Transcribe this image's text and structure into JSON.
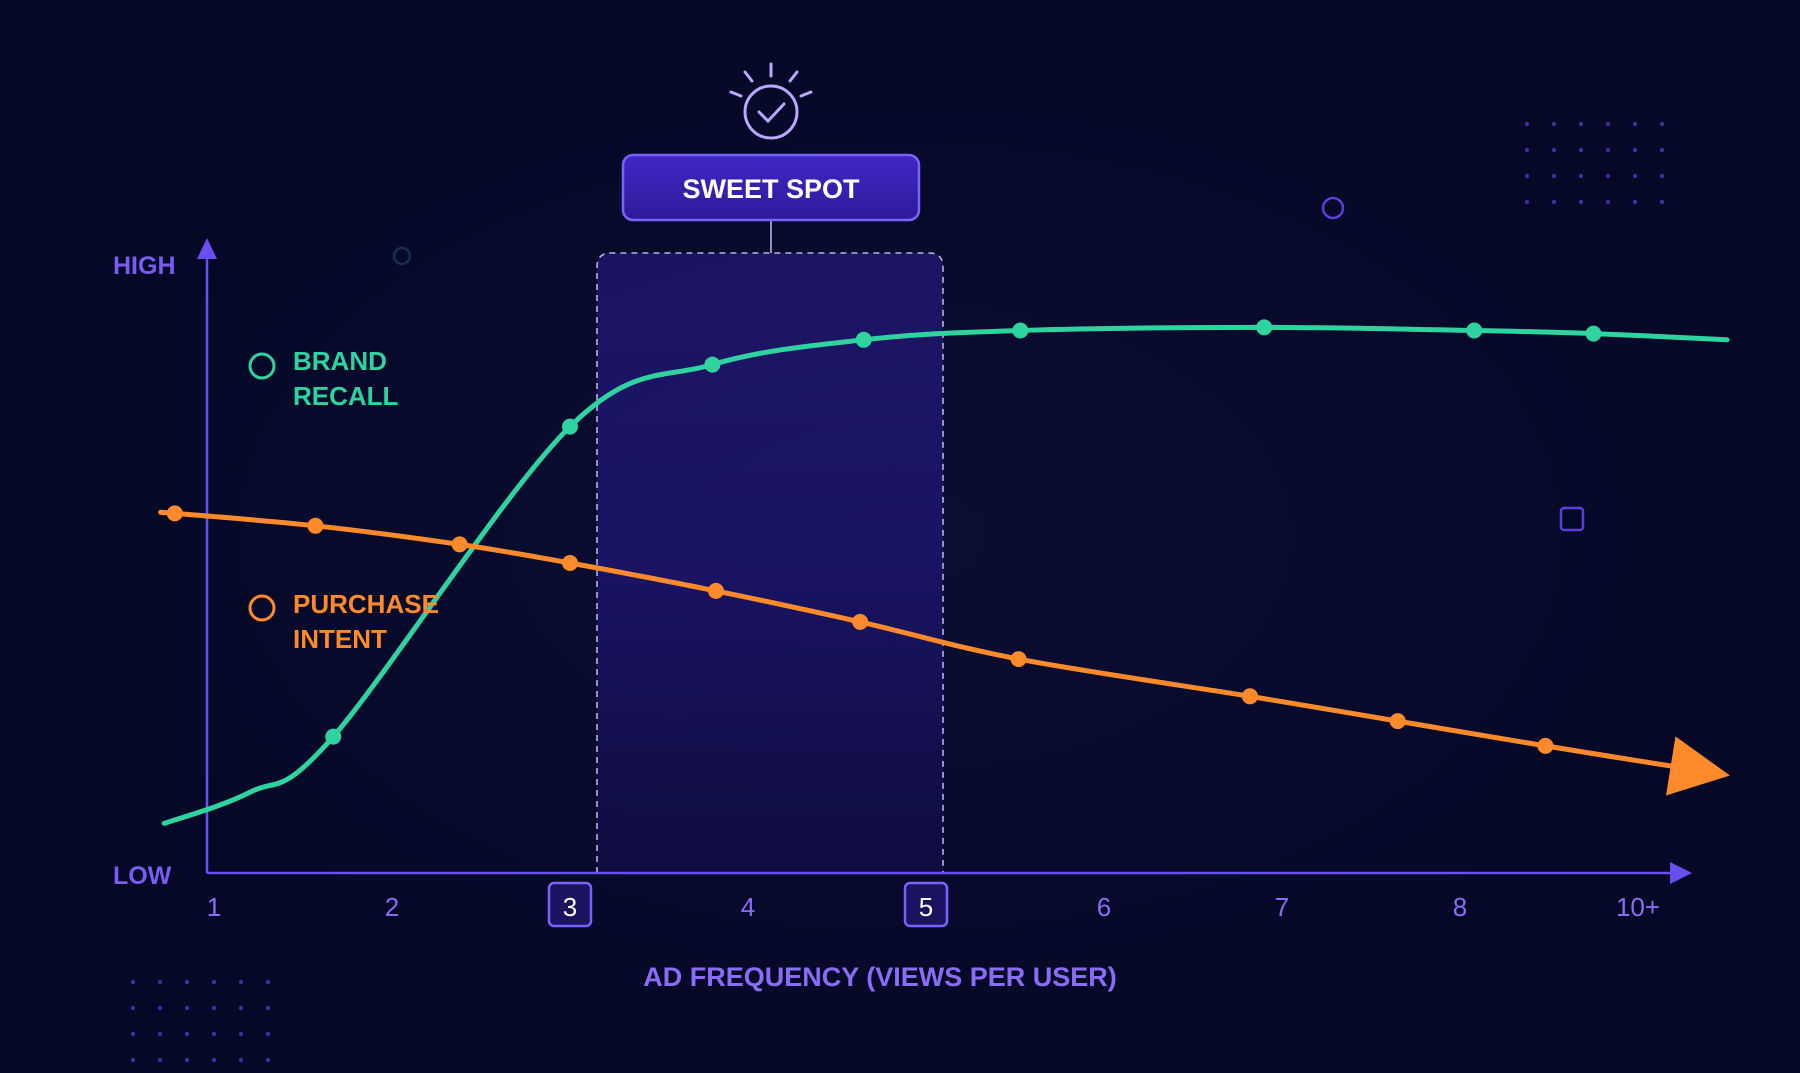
{
  "chart_data": {
    "type": "line",
    "title": "",
    "xlabel": "AD FREQUENCY (VIEWS PER USER)",
    "ylabel": "",
    "y_axis_labels": {
      "high": "HIGH",
      "low": "LOW"
    },
    "x_tick_labels": [
      "1",
      "2",
      "3",
      "4",
      "5",
      "6",
      "7",
      "8",
      "10+"
    ],
    "highlighted_ticks": [
      "3",
      "5"
    ],
    "xlim": [
      0.5,
      9.5
    ],
    "ylim": [
      0,
      100
    ],
    "grid": false,
    "legend_position": "left",
    "annotation": {
      "label": "SWEET SPOT",
      "range": [
        3,
        5
      ]
    },
    "series": [
      {
        "name": "BRAND RECALL",
        "legend_lines": [
          "BRAND",
          "RECALL"
        ],
        "color": "#2ed3a0",
        "x": [
          1.67,
          3.0,
          3.8,
          4.65,
          5.53,
          6.9,
          8.08,
          8.75
        ],
        "y": [
          22,
          72,
          82,
          86,
          87.5,
          88,
          87.5,
          87
        ]
      },
      {
        "name": "PURCHASE INTENT",
        "legend_lines": [
          "PURCHASE",
          "INTENT"
        ],
        "color": "#ff8a2b",
        "x": [
          0.78,
          1.57,
          2.38,
          3.0,
          3.82,
          4.63,
          5.52,
          6.82,
          7.65,
          8.48
        ],
        "y": [
          58,
          56,
          53,
          50,
          45.5,
          40.5,
          34.5,
          28.5,
          24.5,
          20.5
        ]
      }
    ]
  },
  "colors": {
    "background": "#050826",
    "axis": "#6a4ff0",
    "axis_text": "#8b6cf6",
    "band_fill": "#1e1670",
    "badge_fill": "#3a24b8",
    "badge_border": "#7a62ff"
  },
  "icons": {
    "sweet_spot": "lightbulb-check-icon"
  }
}
